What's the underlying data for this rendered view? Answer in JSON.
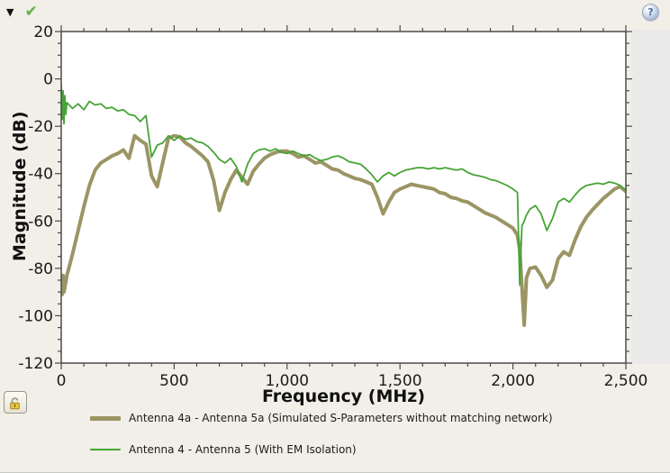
{
  "window": {
    "background": "#f1efe7",
    "right_panel_color": "#eaeaea",
    "axis_color": "#4b4b4b",
    "text_color": "#1b1b1b"
  },
  "toolbar": {
    "collapse_icon": "▼",
    "check_icon": "✔",
    "help_icon": "?"
  },
  "chart_data": {
    "type": "line",
    "title": "",
    "xlabel": "Frequency (MHz)",
    "ylabel": "Magnitude (dB)",
    "xlim": [
      0,
      2500
    ],
    "ylim": [
      -120,
      20
    ],
    "grid": false,
    "legend_position": "bottom-left",
    "x_major_ticks": [
      0,
      500,
      1000,
      1500,
      2000,
      2500
    ],
    "x_tick_labels": [
      "0",
      "500",
      "1,000",
      "1,500",
      "2,000",
      "2,500"
    ],
    "x_minor_step": 100,
    "y_major_ticks": [
      20,
      0,
      -20,
      -40,
      -60,
      -80,
      -100,
      -120
    ],
    "y_tick_labels": [
      "20",
      "0",
      "-20",
      "-40",
      "-60",
      "-80",
      "-100",
      "-120"
    ],
    "y_minor_step": 5,
    "x": [
      0,
      4,
      8,
      12,
      16,
      20,
      25,
      50,
      75,
      100,
      125,
      150,
      175,
      200,
      225,
      250,
      275,
      300,
      325,
      350,
      375,
      400,
      425,
      450,
      475,
      500,
      525,
      550,
      575,
      600,
      625,
      650,
      675,
      700,
      725,
      750,
      775,
      800,
      825,
      850,
      875,
      900,
      925,
      950,
      975,
      1000,
      1025,
      1050,
      1075,
      1100,
      1125,
      1150,
      1175,
      1200,
      1225,
      1250,
      1275,
      1300,
      1325,
      1350,
      1375,
      1400,
      1425,
      1450,
      1475,
      1500,
      1525,
      1550,
      1575,
      1600,
      1625,
      1650,
      1675,
      1700,
      1725,
      1750,
      1775,
      1800,
      1825,
      1850,
      1875,
      1900,
      1925,
      1950,
      1975,
      2000,
      2020,
      2030,
      2040,
      2050,
      2060,
      2075,
      2100,
      2125,
      2150,
      2175,
      2200,
      2225,
      2250,
      2275,
      2300,
      2325,
      2350,
      2375,
      2400,
      2425,
      2450,
      2475,
      2500
    ],
    "series": [
      {
        "name": "Antenna 4a - Antenna 5a (Simulated S-Parameters without matching network)",
        "color": "#9b9565",
        "width": 4,
        "values": [
          -84,
          -91,
          -83,
          -90,
          -88,
          -86,
          -83,
          -74,
          -64,
          -54,
          -45,
          -38.5,
          -35.5,
          -34,
          -32.5,
          -31.5,
          -30,
          -33.5,
          -24,
          -26,
          -27.5,
          -41,
          -45.5,
          -35,
          -25,
          -24,
          -24.5,
          -27,
          -28.5,
          -30.5,
          -32.5,
          -35,
          -43,
          -55.5,
          -48,
          -42.5,
          -38.5,
          -41.5,
          -44.5,
          -39,
          -36,
          -33.5,
          -32,
          -31,
          -30.5,
          -30.5,
          -31.5,
          -33,
          -32.5,
          -34,
          -35.5,
          -35,
          -36.5,
          -38,
          -38.5,
          -40,
          -41,
          -42,
          -42.5,
          -43.5,
          -44.5,
          -50,
          -57,
          -52,
          -48,
          -46.5,
          -45.5,
          -44.5,
          -45,
          -45.5,
          -46,
          -46.5,
          -48,
          -48.5,
          -50,
          -50.5,
          -51.5,
          -52,
          -53.5,
          -55,
          -56.5,
          -57.5,
          -58.5,
          -60,
          -61.5,
          -63,
          -66,
          -72,
          -88,
          -104,
          -84,
          -80,
          -79.5,
          -83,
          -88,
          -85,
          -76,
          -73,
          -74.5,
          -68,
          -62.5,
          -58.5,
          -55.5,
          -53,
          -50.5,
          -48.5,
          -46.5,
          -45.5,
          -47.5
        ]
      },
      {
        "name": "Antenna 4 - Antenna 5 (With EM Isolation)",
        "color": "#46a436",
        "width": 1.8,
        "values": [
          -2.5,
          -17,
          -5,
          -19,
          -7,
          -15,
          -10,
          -12.5,
          -10.5,
          -13,
          -9.5,
          -11,
          -10.5,
          -12.5,
          -12,
          -13.5,
          -13,
          -15,
          -15.5,
          -18,
          -15.5,
          -33,
          -28,
          -27,
          -24,
          -26,
          -24,
          -25.5,
          -25,
          -26.5,
          -27,
          -28.5,
          -31,
          -34,
          -35.5,
          -33.5,
          -37,
          -43.5,
          -36,
          -31.5,
          -30,
          -29.5,
          -30.5,
          -29.5,
          -31,
          -31.5,
          -30.5,
          -31.5,
          -32.5,
          -32,
          -33.5,
          -34.5,
          -34,
          -33,
          -32.5,
          -33.5,
          -35,
          -35.5,
          -36,
          -38,
          -40.5,
          -43.5,
          -41,
          -39.5,
          -41,
          -39.5,
          -38.5,
          -38,
          -37.5,
          -37.5,
          -38,
          -37.5,
          -38,
          -37.5,
          -38,
          -38.5,
          -38,
          -39.5,
          -40.5,
          -41,
          -41.5,
          -42.5,
          -43,
          -44,
          -45,
          -46.5,
          -48,
          -87,
          -62,
          -60,
          -57.5,
          -55,
          -53.5,
          -57,
          -64,
          -59,
          -52,
          -50.5,
          -52,
          -49,
          -46.5,
          -45,
          -44.5,
          -44,
          -44.5,
          -43.5,
          -44,
          -45,
          -47
        ]
      }
    ]
  }
}
